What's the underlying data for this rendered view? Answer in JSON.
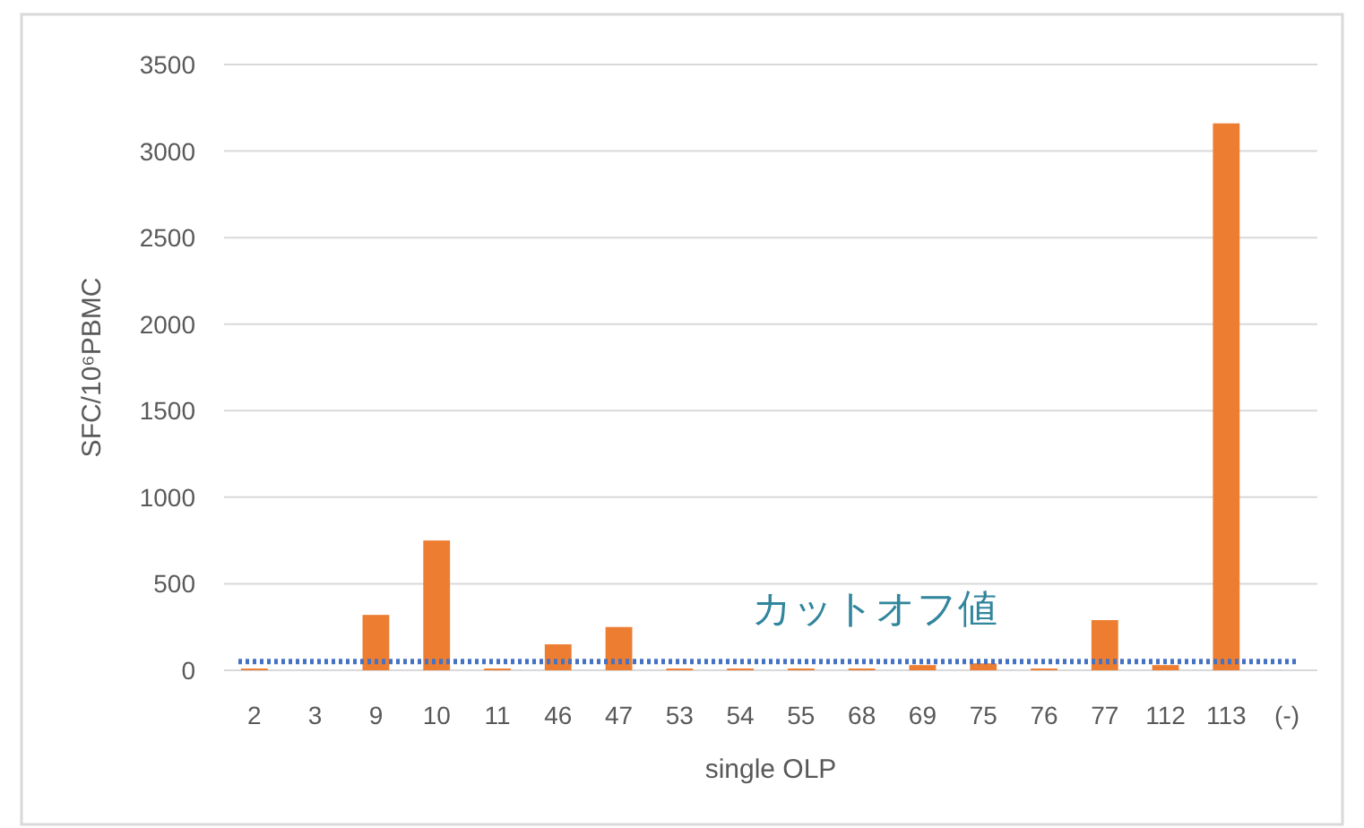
{
  "chart_data": {
    "type": "bar",
    "xlabel": "single OLP",
    "ylabel": "SFC/10⁶PBMC",
    "categories": [
      "2",
      "3",
      "9",
      "10",
      "11",
      "46",
      "47",
      "53",
      "54",
      "55",
      "68",
      "69",
      "75",
      "76",
      "77",
      "112",
      "113",
      "(-)"
    ],
    "series": [
      {
        "color": "#ed7d31",
        "values": [
          10,
          0,
          320,
          750,
          10,
          150,
          250,
          10,
          10,
          10,
          10,
          30,
          40,
          10,
          290,
          30,
          3160,
          0
        ]
      }
    ],
    "ylim": [
      0,
      3500
    ],
    "yticks": [
      0,
      500,
      1000,
      1500,
      2000,
      2500,
      3000,
      3500
    ],
    "grid": "y",
    "ref_lines": [
      {
        "axis": "y",
        "value": 50,
        "label": "カットオフ値",
        "color": "#4472c4",
        "line_style": "dotted"
      }
    ]
  }
}
